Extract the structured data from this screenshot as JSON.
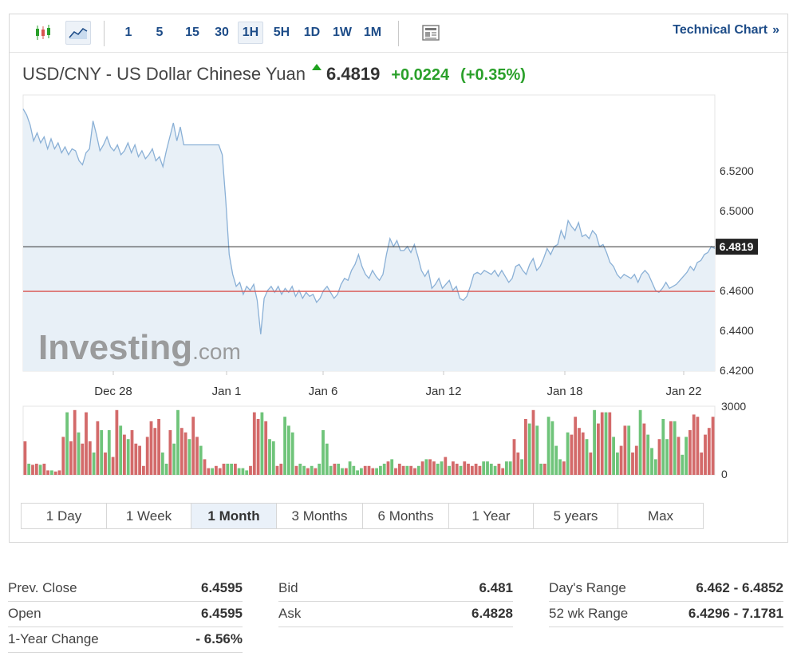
{
  "toolbar": {
    "chart_type_icons": [
      {
        "name": "candlestick-icon",
        "active": false
      },
      {
        "name": "area-chart-icon",
        "active": true
      }
    ],
    "timeframes": [
      {
        "label": "1",
        "active": false
      },
      {
        "label": "5",
        "active": false
      },
      {
        "label": "15",
        "active": false
      },
      {
        "label": "30",
        "active": false
      },
      {
        "label": "1H",
        "active": true
      },
      {
        "label": "5H",
        "active": false
      },
      {
        "label": "1D",
        "active": false
      },
      {
        "label": "1W",
        "active": false
      },
      {
        "label": "1M",
        "active": false
      }
    ],
    "news_icon": "newspaper-icon",
    "technical_chart_label": "Technical Chart",
    "technical_chart_chevron": "»"
  },
  "quote": {
    "name": "USD/CNY - US Dollar Chinese Yuan",
    "direction_icon": "up-arrow-icon",
    "price": "6.4819",
    "change": "+0.0224",
    "change_pct": "(+0.35%)"
  },
  "watermark": {
    "brand": "Investing",
    "suffix": ".com"
  },
  "colors": {
    "line": "#8ab0d6",
    "area": "#e8f0f7",
    "current_price_line": "#333333",
    "prev_close_line": "#d9534f",
    "volume_up": "#6fc47a",
    "volume_down": "#d36a6a",
    "positive": "#2aa02a",
    "link": "#1d4c88"
  },
  "chart_data": {
    "type": "area",
    "x_tick_labels": [
      "Dec 28",
      "Jan 1",
      "Jan 6",
      "Jan 12",
      "Jan 18",
      "Jan 22"
    ],
    "y_tick_labels": [
      "6.5200",
      "6.5000",
      "6.4819",
      "6.4600",
      "6.4400",
      "6.4200"
    ],
    "y_ticks": [
      6.52,
      6.5,
      6.46,
      6.44,
      6.42
    ],
    "ylim": [
      6.4195,
      6.558
    ],
    "current_price": 6.4819,
    "current_price_label": "6.4819",
    "prev_close": 6.4595,
    "series": [
      {
        "values": [
          6.551,
          6.548,
          6.543,
          6.535,
          6.539,
          6.534,
          6.537,
          6.531,
          6.536,
          6.531,
          6.534,
          6.529,
          6.532,
          6.528,
          6.531,
          6.53,
          6.525,
          6.523,
          6.529,
          6.531,
          6.545,
          6.538,
          6.53,
          6.533,
          6.537,
          6.532,
          6.53,
          6.533,
          6.528,
          6.53,
          6.534,
          6.529,
          6.533,
          6.527,
          6.53,
          6.526,
          6.528,
          6.531,
          6.525,
          6.527,
          6.522,
          6.53,
          6.537,
          6.544,
          6.535,
          6.542,
          6.533,
          6.533,
          6.533,
          6.533,
          6.533,
          6.533,
          6.533,
          6.533,
          6.533,
          6.533,
          6.533,
          6.528,
          6.505,
          6.478,
          6.468,
          6.462,
          6.464,
          6.458,
          6.462,
          6.46,
          6.463,
          6.455,
          6.438,
          6.456,
          6.46,
          6.462,
          6.459,
          6.462,
          6.458,
          6.461,
          6.459,
          6.462,
          6.457,
          6.46,
          6.456,
          6.459,
          6.457,
          6.458,
          6.454,
          6.456,
          6.46,
          6.462,
          6.459,
          6.456,
          6.458,
          6.463,
          6.466,
          6.465,
          6.47,
          6.473,
          6.478,
          6.472,
          6.468,
          6.466,
          6.47,
          6.467,
          6.465,
          6.468,
          6.478,
          6.486,
          6.482,
          6.485,
          6.48,
          6.48,
          6.482,
          6.479,
          6.483,
          6.477,
          6.47,
          6.467,
          6.47,
          6.461,
          6.463,
          6.466,
          6.461,
          6.463,
          6.465,
          6.46,
          6.462,
          6.456,
          6.455,
          6.457,
          6.462,
          6.468,
          6.469,
          6.468,
          6.47,
          6.469,
          6.468,
          6.47,
          6.467,
          6.47,
          6.467,
          6.464,
          6.466,
          6.472,
          6.473,
          6.47,
          6.468,
          6.473,
          6.476,
          6.47,
          6.472,
          6.476,
          6.481,
          6.478,
          6.482,
          6.483,
          6.49,
          6.486,
          6.495,
          6.492,
          6.49,
          6.494,
          6.487,
          6.488,
          6.486,
          6.49,
          6.488,
          6.482,
          6.483,
          6.479,
          6.474,
          6.472,
          6.468,
          6.466,
          6.468,
          6.467,
          6.466,
          6.468,
          6.464,
          6.468,
          6.47,
          6.468,
          6.464,
          6.46,
          6.459,
          6.461,
          6.464,
          6.461,
          6.462,
          6.463,
          6.465,
          6.467,
          6.469,
          6.472,
          6.47,
          6.474,
          6.475,
          6.478,
          6.479,
          6.482,
          6.481
        ]
      }
    ],
    "volume": {
      "ylim": [
        0,
        3000
      ],
      "y_tick_labels": [
        "3000",
        "0"
      ],
      "up": [
        false,
        true,
        false,
        false,
        true,
        false,
        false,
        true,
        false,
        false,
        false,
        true,
        false,
        false,
        true,
        false,
        false,
        false,
        true,
        false,
        true,
        false,
        true,
        false,
        false,
        true,
        false,
        true,
        false,
        false,
        false,
        false,
        false,
        false,
        false,
        false,
        true,
        true,
        false,
        true,
        true,
        false,
        false,
        true,
        false,
        false,
        true,
        false,
        false,
        true,
        false,
        false,
        false,
        true,
        true,
        false,
        true,
        true,
        true,
        false,
        false,
        false,
        true,
        false,
        true,
        true,
        false,
        false,
        true,
        true,
        true,
        false,
        true,
        true,
        false,
        true,
        false,
        true,
        true,
        true,
        true,
        false,
        true,
        true,
        false,
        true,
        true,
        true,
        true,
        false,
        false,
        false,
        true,
        true,
        true,
        false,
        true,
        false,
        false,
        false,
        true,
        false,
        false,
        true,
        false,
        true,
        false,
        false,
        true,
        true,
        false,
        true,
        false,
        false,
        true,
        false,
        false,
        false,
        false,
        false,
        true,
        true,
        true,
        true,
        false,
        false,
        true,
        true,
        false,
        false,
        true,
        false,
        true,
        false,
        true,
        true,
        false,
        true,
        true,
        true,
        true,
        false,
        true,
        false,
        false,
        false,
        false,
        true,
        false,
        true,
        false,
        false,
        true,
        false,
        true,
        true,
        false,
        false,
        true,
        false,
        false,
        true,
        false,
        true,
        true,
        true,
        false,
        true,
        true,
        false,
        true,
        false,
        true,
        true
      ],
      "values": [
        1500,
        500,
        450,
        500,
        450,
        500,
        200,
        200,
        150,
        200,
        1700,
        2800,
        1500,
        2900,
        1900,
        1400,
        2800,
        1500,
        1000,
        2400,
        2000,
        1000,
        2000,
        800,
        2900,
        2200,
        1800,
        1600,
        2000,
        1400,
        1300,
        400,
        1700,
        2400,
        2100,
        2500,
        1000,
        500,
        2000,
        1400,
        2900,
        2100,
        1900,
        1600,
        2600,
        1700,
        1300,
        700,
        300,
        300,
        400,
        300,
        500,
        500,
        500,
        500,
        300,
        300,
        200,
        400,
        2800,
        2500,
        2800,
        2400,
        1600,
        1500,
        400,
        500,
        2600,
        2200,
        1900,
        400,
        500,
        400,
        300,
        400,
        300,
        500,
        2000,
        1400,
        400,
        500,
        500,
        300,
        300,
        600,
        400,
        200,
        300,
        400,
        400,
        300,
        300,
        400,
        500,
        600,
        700,
        300,
        500,
        400,
        400,
        400,
        300,
        400,
        600,
        700,
        700,
        600,
        500,
        600,
        800,
        400,
        600,
        500,
        400,
        600,
        500,
        400,
        500,
        400,
        600,
        600,
        500,
        400,
        500,
        300,
        600,
        600,
        1600,
        1000,
        700,
        2500,
        2300,
        2900,
        2200,
        500,
        500,
        2600,
        2400,
        1300,
        700,
        600,
        1900,
        1800,
        2600,
        2100,
        1900,
        1600,
        1000,
        2900,
        2300,
        2800,
        2800,
        2800,
        1700,
        1000,
        1300,
        2200,
        2200,
        1000,
        1300,
        2900,
        2300,
        1800,
        1200,
        700,
        1600,
        2500,
        1600,
        2400,
        2400,
        1700,
        900,
        1700,
        2000,
        2700,
        2600,
        1000,
        1800,
        2100,
        2600
      ]
    }
  },
  "ranges": [
    {
      "label": "1 Day",
      "active": false
    },
    {
      "label": "1 Week",
      "active": false
    },
    {
      "label": "1 Month",
      "active": true
    },
    {
      "label": "3 Months",
      "active": false
    },
    {
      "label": "6 Months",
      "active": false
    },
    {
      "label": "1 Year",
      "active": false
    },
    {
      "label": "5 years",
      "active": false
    },
    {
      "label": "Max",
      "active": false
    }
  ],
  "stats": {
    "prev_close": {
      "label": "Prev. Close",
      "value": "6.4595"
    },
    "open": {
      "label": "Open",
      "value": "6.4595"
    },
    "one_year_change": {
      "label": "1-Year Change",
      "value": "- 6.56%"
    },
    "bid": {
      "label": "Bid",
      "value": "6.481"
    },
    "ask": {
      "label": "Ask",
      "value": "6.4828"
    },
    "days_range": {
      "label": "Day's Range",
      "value": "6.462 - 6.4852"
    },
    "wk52_range": {
      "label": "52 wk Range",
      "value": "6.4296 - 7.1781"
    }
  }
}
